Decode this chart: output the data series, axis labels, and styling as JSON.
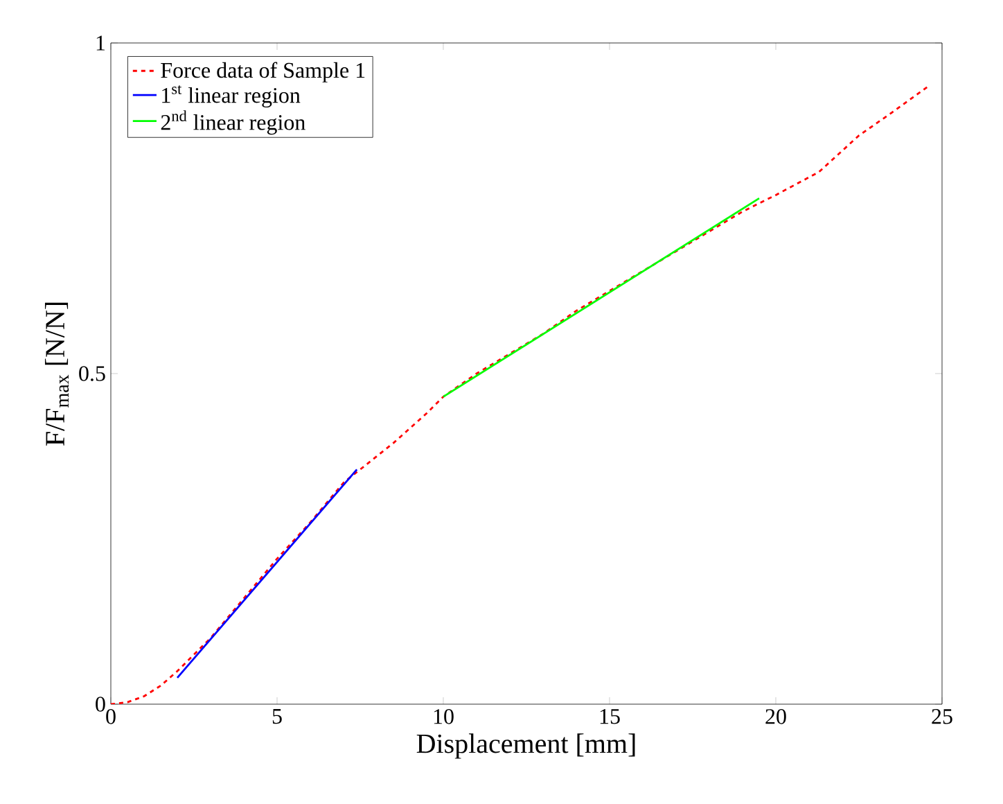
{
  "chart_data": {
    "type": "line",
    "xlabel": "Displacement [mm]",
    "ylabel": "F/F$_{max}$ [N/N]",
    "xlim": [
      0,
      25
    ],
    "ylim": [
      0,
      1
    ],
    "xticks": [
      0,
      5,
      10,
      15,
      20,
      25
    ],
    "yticks": [
      0,
      0.5,
      1
    ],
    "legend": "top left",
    "grid": false,
    "marker": "none",
    "series": [
      {
        "name": "Force data of Sample 1",
        "color": "#ff0000",
        "line_style": "dashed",
        "x": [
          0,
          0.5,
          1,
          1.5,
          2,
          3,
          4,
          5,
          6,
          7,
          7.5,
          8.5,
          9.5,
          10,
          11,
          12,
          13,
          14,
          15,
          16,
          17,
          18,
          19,
          20,
          21.3,
          22.5,
          23.5,
          24.6
        ],
        "values": [
          0,
          0.003,
          0.012,
          0.028,
          0.05,
          0.1,
          0.16,
          0.22,
          0.275,
          0.335,
          0.355,
          0.395,
          0.44,
          0.465,
          0.5,
          0.53,
          0.56,
          0.595,
          0.625,
          0.655,
          0.685,
          0.715,
          0.745,
          0.77,
          0.805,
          0.86,
          0.895,
          0.935
        ]
      },
      {
        "name": "1$^{st}$ linear region",
        "color": "#0000ff",
        "line_style": "solid",
        "x": [
          2,
          7.4
        ],
        "values": [
          0.04,
          0.355
        ]
      },
      {
        "name": "2$^{nd}$ linear region",
        "color": "#00ff00",
        "line_style": "solid",
        "x": [
          10,
          19.5
        ],
        "values": [
          0.465,
          0.765
        ]
      }
    ]
  }
}
